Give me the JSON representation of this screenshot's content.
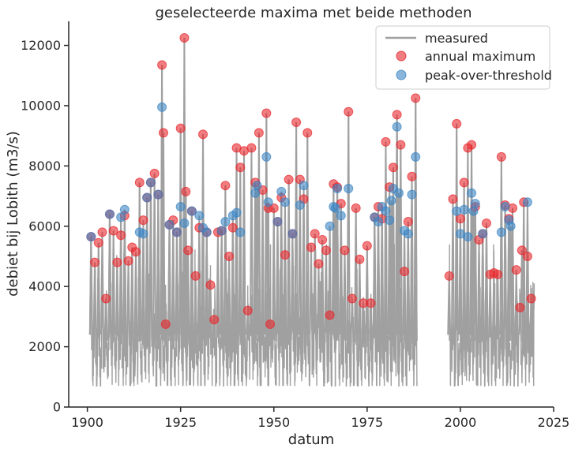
{
  "chart_data": {
    "type": "line",
    "title": "geselecteerde maxima met beide methoden",
    "xlabel": "datum",
    "ylabel": "debiet bij Lobith (m3/s)",
    "xlim": [
      1895,
      2025
    ],
    "ylim": [
      0,
      12800
    ],
    "xticks": [
      "1900",
      "1925",
      "1950",
      "1975",
      "2000",
      "2025"
    ],
    "yticks": [
      "0",
      "2000",
      "4000",
      "6000",
      "8000",
      "10000",
      "12000"
    ],
    "grid": false,
    "legend_position": "top-right",
    "legend": [
      "measured",
      "annual maximum",
      "peak-over-threshold"
    ],
    "colors": {
      "measured": "#a0a0a0",
      "annual": "#e8262b",
      "pot": "#3c86c4"
    },
    "measured_gaps": [
      [
        1988.4,
        1996.9
      ]
    ],
    "measured_x_range": [
      1901.0,
      2019.8
    ],
    "annual_maximum": [
      [
        1901,
        5650
      ],
      [
        1902,
        4800
      ],
      [
        1903,
        5450
      ],
      [
        1904,
        5800
      ],
      [
        1905,
        3600
      ],
      [
        1906,
        6400
      ],
      [
        1907,
        5850
      ],
      [
        1908,
        4800
      ],
      [
        1909,
        5700
      ],
      [
        1910,
        6350
      ],
      [
        1911,
        4850
      ],
      [
        1912,
        5300
      ],
      [
        1913,
        5150
      ],
      [
        1914,
        7450
      ],
      [
        1915,
        6200
      ],
      [
        1916,
        6950
      ],
      [
        1917,
        7450
      ],
      [
        1918,
        7750
      ],
      [
        1919,
        7050
      ],
      [
        1920,
        11350
      ],
      [
        1920.4,
        9100
      ],
      [
        1921,
        2750
      ],
      [
        1922,
        6050
      ],
      [
        1923,
        6200
      ],
      [
        1924,
        5800
      ],
      [
        1925,
        9250
      ],
      [
        1926,
        12250
      ],
      [
        1926.4,
        7150
      ],
      [
        1927,
        5200
      ],
      [
        1928,
        6500
      ],
      [
        1929,
        4350
      ],
      [
        1930,
        5950
      ],
      [
        1931,
        9050
      ],
      [
        1932,
        5800
      ],
      [
        1933,
        4050
      ],
      [
        1934,
        2900
      ],
      [
        1935,
        5800
      ],
      [
        1936,
        5850
      ],
      [
        1937,
        7350
      ],
      [
        1938,
        5000
      ],
      [
        1939,
        5950
      ],
      [
        1940,
        8600
      ],
      [
        1941,
        7950
      ],
      [
        1942,
        8500
      ],
      [
        1943,
        3200
      ],
      [
        1944,
        8600
      ],
      [
        1945,
        7450
      ],
      [
        1946,
        9100
      ],
      [
        1947,
        7200
      ],
      [
        1948,
        9750
      ],
      [
        1948.5,
        6600
      ],
      [
        1949,
        2750
      ],
      [
        1950,
        6600
      ],
      [
        1951,
        6150
      ],
      [
        1952,
        6950
      ],
      [
        1953,
        5050
      ],
      [
        1954,
        7550
      ],
      [
        1955,
        5750
      ],
      [
        1956,
        9450
      ],
      [
        1957,
        7550
      ],
      [
        1958,
        6900
      ],
      [
        1959,
        9100
      ],
      [
        1960,
        5300
      ],
      [
        1961,
        5750
      ],
      [
        1962,
        4750
      ],
      [
        1963,
        5550
      ],
      [
        1964,
        5200
      ],
      [
        1965,
        3050
      ],
      [
        1966,
        7400
      ],
      [
        1967,
        7300
      ],
      [
        1968,
        6750
      ],
      [
        1969,
        5200
      ],
      [
        1970,
        9800
      ],
      [
        1971,
        3600
      ],
      [
        1972,
        6600
      ],
      [
        1973,
        4900
      ],
      [
        1974,
        3450
      ],
      [
        1975,
        5350
      ],
      [
        1976,
        3450
      ],
      [
        1977,
        6300
      ],
      [
        1978,
        6650
      ],
      [
        1979,
        6250
      ],
      [
        1980,
        8800
      ],
      [
        1981,
        7300
      ],
      [
        1982,
        7950
      ],
      [
        1983,
        9700
      ],
      [
        1984,
        8700
      ],
      [
        1985,
        4500
      ],
      [
        1986,
        6150
      ],
      [
        1987,
        7650
      ],
      [
        1988,
        10250
      ],
      [
        1997,
        4350
      ],
      [
        1998,
        6900
      ],
      [
        1999,
        9400
      ],
      [
        2000,
        6250
      ],
      [
        2001,
        7450
      ],
      [
        2002,
        8600
      ],
      [
        2003,
        8700
      ],
      [
        2004,
        6650
      ],
      [
        2005,
        5550
      ],
      [
        2006,
        5750
      ],
      [
        2007,
        6100
      ],
      [
        2008,
        4400
      ],
      [
        2009,
        4450
      ],
      [
        2010,
        4400
      ],
      [
        2011,
        8300
      ],
      [
        2012,
        6700
      ],
      [
        2013,
        6250
      ],
      [
        2014,
        6600
      ],
      [
        2015,
        4550
      ],
      [
        2016,
        3300
      ],
      [
        2016.5,
        5200
      ],
      [
        2017,
        6800
      ],
      [
        2018,
        5000
      ],
      [
        2019,
        3600
      ]
    ],
    "peak_over_threshold": [
      [
        1901,
        5650
      ],
      [
        1906,
        6400
      ],
      [
        1909,
        6300
      ],
      [
        1910,
        6550
      ],
      [
        1914,
        5800
      ],
      [
        1915,
        5750
      ],
      [
        1916,
        6950
      ],
      [
        1917,
        7450
      ],
      [
        1919,
        7050
      ],
      [
        1920,
        9950
      ],
      [
        1922,
        6050
      ],
      [
        1924,
        5800
      ],
      [
        1925,
        6650
      ],
      [
        1926,
        6100
      ],
      [
        1928,
        6500
      ],
      [
        1930,
        6350
      ],
      [
        1931,
        5950
      ],
      [
        1932,
        5800
      ],
      [
        1936,
        5850
      ],
      [
        1937,
        6150
      ],
      [
        1939,
        6350
      ],
      [
        1940,
        6450
      ],
      [
        1941,
        5800
      ],
      [
        1945,
        7100
      ],
      [
        1945.5,
        7350
      ],
      [
        1948,
        8300
      ],
      [
        1948.5,
        6800
      ],
      [
        1951,
        6150
      ],
      [
        1952,
        7150
      ],
      [
        1953,
        6800
      ],
      [
        1955,
        5750
      ],
      [
        1957,
        6700
      ],
      [
        1958,
        7350
      ],
      [
        1965,
        6000
      ],
      [
        1966,
        6650
      ],
      [
        1966.5,
        6600
      ],
      [
        1967,
        7250
      ],
      [
        1968,
        6350
      ],
      [
        1970,
        7250
      ],
      [
        1977,
        6300
      ],
      [
        1978,
        6150
      ],
      [
        1979,
        6650
      ],
      [
        1980,
        6500
      ],
      [
        1981,
        6200
      ],
      [
        1981.5,
        6850
      ],
      [
        1982,
        7250
      ],
      [
        1983,
        9300
      ],
      [
        1983.5,
        7100
      ],
      [
        1985,
        5850
      ],
      [
        1986,
        5750
      ],
      [
        1987,
        7050
      ],
      [
        1988,
        8300
      ],
      [
        1999,
        6500
      ],
      [
        2000,
        5750
      ],
      [
        2001,
        6550
      ],
      [
        2002,
        5650
      ],
      [
        2003,
        7100
      ],
      [
        2003.5,
        6500
      ],
      [
        2004,
        6750
      ],
      [
        2006,
        5750
      ],
      [
        2011,
        5800
      ],
      [
        2012,
        6650
      ],
      [
        2013,
        6200
      ],
      [
        2013.5,
        6000
      ],
      [
        2018,
        6800
      ]
    ]
  }
}
